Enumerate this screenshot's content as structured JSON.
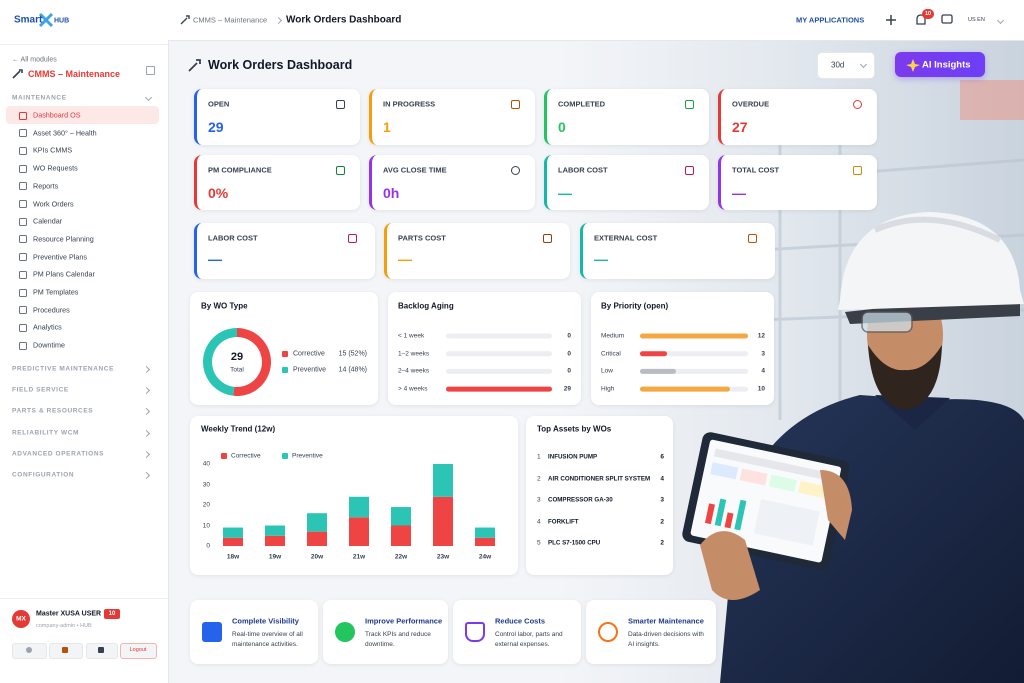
{
  "sidebar": {
    "logo": "Smart",
    "logo_suffix": "HUB",
    "back_link": "← All modules",
    "module": "CMMS – Maintenance",
    "section": "MAINTENANCE",
    "active": 0,
    "items": [
      "Dashboard OS",
      "Asset 360° – Health",
      "KPIs CMMS",
      "WO Requests",
      "Reports",
      "Work Orders",
      "Calendar",
      "Resource Planning",
      "Preventive Plans",
      "PM Plans Calendar",
      "PM Templates",
      "Procedures",
      "Analytics",
      "Downtime"
    ],
    "groups": [
      "PREDICTIVE MAINTENANCE",
      "FIELD SERVICE",
      "PARTS & RESOURCES",
      "RELIABILITY WCM",
      "ADVANCED OPERATIONS",
      "CONFIGURATION"
    ],
    "user": {
      "initials": "MX",
      "name": "Master XUSA USER",
      "badge": "10",
      "role": "company-admin • HUB",
      "logout": "Logout"
    }
  },
  "topbar": {
    "breadcrumb": "CMMS – Maintenance",
    "page": "Work Orders Dashboard",
    "apps": "MY APPLICATIONS",
    "notifications": "10",
    "language": "US EN"
  },
  "header": {
    "title": "Work Orders Dashboard",
    "range": "30d",
    "ai_button": "AI Insights"
  },
  "kpis": [
    {
      "label": "OPEN",
      "value": 29,
      "color": "#2563eb"
    },
    {
      "label": "IN PROGRESS",
      "value": 1,
      "color": "#f59e0b"
    },
    {
      "label": "COMPLETED",
      "value": 0,
      "color": "#22c55e"
    },
    {
      "label": "OVERDUE",
      "value": 27,
      "color": "#e53935"
    },
    {
      "label": "PM COMPLIANCE",
      "value": "0%",
      "color": "#e53935"
    },
    {
      "label": "AVG CLOSE TIME",
      "value": "0h",
      "color": "#9333ea"
    },
    {
      "label": "LABOR COST",
      "value": "—",
      "color": "#14b8a6"
    },
    {
      "label": "TOTAL COST",
      "value": "—",
      "color": "#9333ea"
    }
  ],
  "cost_cards": [
    {
      "label": "LABOR COST",
      "value": "—",
      "color": "#2563eb"
    },
    {
      "label": "PARTS COST",
      "value": "—",
      "color": "#f59e0b"
    },
    {
      "label": "EXTERNAL COST",
      "value": "—",
      "color": "#14b8a6"
    }
  ],
  "wo_type": {
    "title": "By WO Type",
    "total": 29,
    "total_label": "Total",
    "items": [
      {
        "name": "Corrective",
        "value": 15,
        "value_label": "15 (52%)",
        "color": "#ef4444"
      },
      {
        "name": "Preventive",
        "value": 14,
        "value_label": "14 (48%)",
        "color": "#2cc4b4"
      }
    ]
  },
  "backlog": {
    "title": "Backlog Aging",
    "categories": [
      "< 1 week",
      "1–2 weeks",
      "2–4 weeks",
      "> 4 weeks"
    ],
    "values": [
      0,
      0,
      0,
      29
    ],
    "color": "#ef4444"
  },
  "priority": {
    "title": "By Priority (open)",
    "categories": [
      "Medium",
      "Critical",
      "Low",
      "High"
    ],
    "values": [
      12,
      3,
      4,
      10
    ],
    "colors": [
      "#f5a742",
      "#ef4444",
      "#b8bcc4",
      "#f5a742"
    ]
  },
  "weekly_trend": {
    "type": "bar",
    "stacked": true,
    "title": "Weekly Trend (12w)",
    "categories": [
      "18w",
      "19w",
      "20w",
      "21w",
      "22w",
      "23w",
      "24w"
    ],
    "series": [
      {
        "name": "Corrective",
        "color": "#ef4444",
        "values": [
          4,
          5,
          7,
          14,
          10,
          24,
          4
        ]
      },
      {
        "name": "Preventive",
        "color": "#2cc4b4",
        "values": [
          5,
          5,
          9,
          10,
          9,
          16,
          5
        ]
      }
    ],
    "ylim": [
      0,
      40
    ],
    "yticks": [
      0,
      10,
      20,
      30,
      40
    ]
  },
  "top_assets": {
    "title": "Top Assets by WOs",
    "rows": [
      {
        "rank": 1,
        "name": "INFUSION PUMP",
        "count": 6
      },
      {
        "rank": 2,
        "name": "AIR CONDITIONER SPLIT SYSTEM",
        "count": 4
      },
      {
        "rank": 3,
        "name": "COMPRESSOR GA-30",
        "count": 3
      },
      {
        "rank": 4,
        "name": "FORKLIFT",
        "count": 2
      },
      {
        "rank": 5,
        "name": "PLC S7-1500 CPU",
        "count": 2
      }
    ]
  },
  "features": [
    {
      "title": "Complete Visibility",
      "text": "Real-time overview of all maintenance activities.",
      "color": "#2563eb"
    },
    {
      "title": "Improve Performance",
      "text": "Track KPIs and reduce downtime.",
      "color": "#22c55e"
    },
    {
      "title": "Reduce Costs",
      "text": "Control labor, parts and external expenses.",
      "color": "#7c3aed"
    },
    {
      "title": "Smarter Maintenance",
      "text": "Data-driven decisions with AI insights.",
      "color": "#f97316"
    }
  ]
}
